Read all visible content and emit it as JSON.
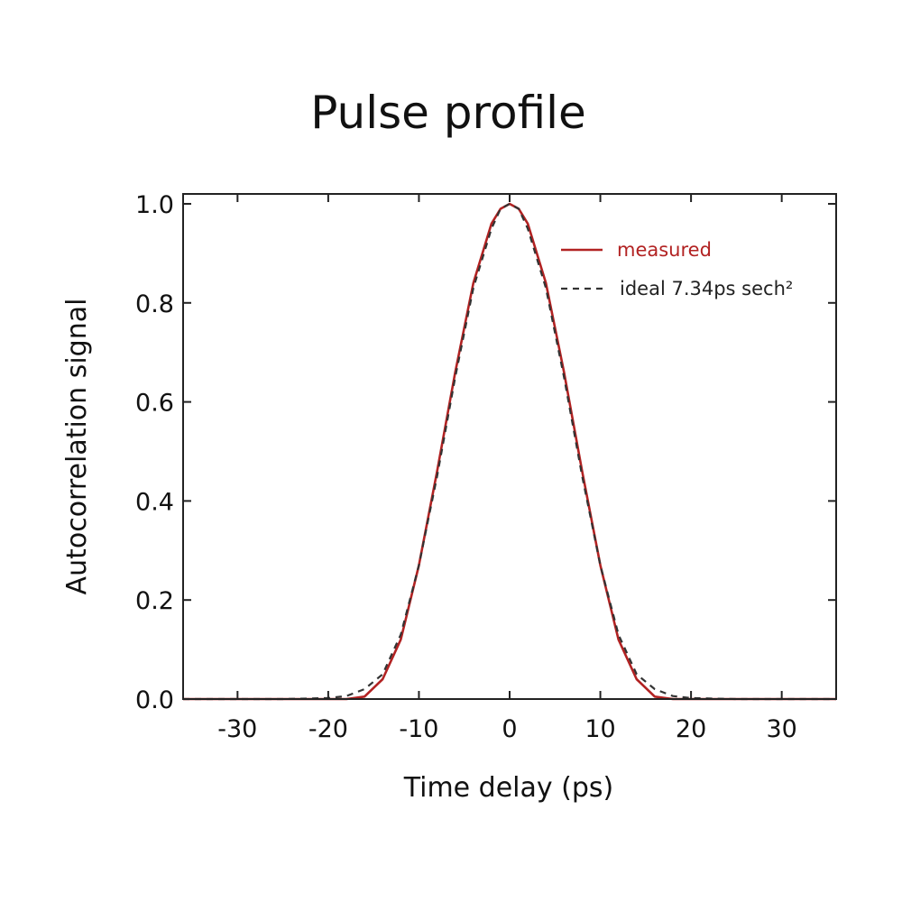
{
  "chart_data": {
    "type": "line",
    "title": "Pulse profile",
    "xlabel": "Time delay (ps)",
    "ylabel": "Autocorrelation signal",
    "xlim": [
      -36,
      36
    ],
    "ylim": [
      0,
      1.02
    ],
    "xticks": [
      -30,
      -20,
      -10,
      0,
      10,
      20,
      30
    ],
    "xtick_labels": [
      "-30",
      "-20",
      "-10",
      "0",
      "10",
      "20",
      "30"
    ],
    "yticks": [
      0,
      0.2,
      0.4,
      0.6,
      0.8,
      1.0
    ],
    "ytick_labels": [
      "0.0",
      "0.2",
      "0.4",
      "0.6",
      "0.8",
      "1.0"
    ],
    "grid": false,
    "legend_position": "top-right",
    "series": [
      {
        "name": "measured",
        "color": "#b22222",
        "style": "solid",
        "x": [
          -36,
          -30,
          -25,
          -20,
          -18,
          -16,
          -14,
          -12,
          -10,
          -8,
          -6,
          -4,
          -2,
          -1,
          0,
          1,
          2,
          4,
          6,
          8,
          10,
          12,
          14,
          16,
          18,
          20,
          25,
          30,
          36
        ],
        "y": [
          0.0,
          0.0,
          0.0,
          0.0,
          0.0,
          0.005,
          0.04,
          0.12,
          0.27,
          0.46,
          0.66,
          0.84,
          0.96,
          0.99,
          1.0,
          0.99,
          0.96,
          0.84,
          0.66,
          0.46,
          0.27,
          0.12,
          0.04,
          0.005,
          0.0,
          0.0,
          0.0,
          0.0,
          0.0
        ]
      },
      {
        "name": "ideal 7.34ps sech²",
        "color": "#333333",
        "style": "dashed",
        "x": [
          -36,
          -30,
          -25,
          -20,
          -18,
          -16,
          -14,
          -12,
          -10,
          -8,
          -6,
          -4,
          -2,
          -1,
          0,
          1,
          2,
          4,
          6,
          8,
          10,
          12,
          14,
          16,
          18,
          20,
          25,
          30,
          36
        ],
        "y": [
          0.0,
          0.0,
          0.0,
          0.002,
          0.006,
          0.02,
          0.05,
          0.13,
          0.27,
          0.45,
          0.65,
          0.83,
          0.95,
          0.99,
          1.0,
          0.99,
          0.95,
          0.83,
          0.65,
          0.45,
          0.27,
          0.13,
          0.05,
          0.02,
          0.006,
          0.002,
          0.0,
          0.0,
          0.0
        ]
      }
    ]
  }
}
